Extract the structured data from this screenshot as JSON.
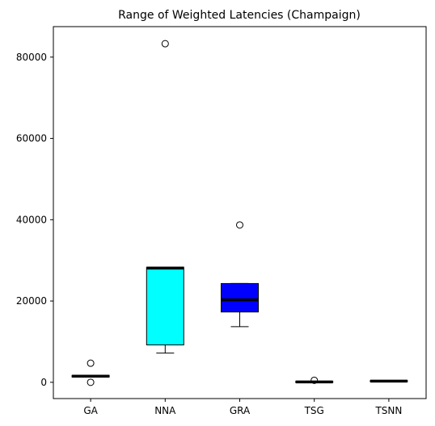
{
  "chart_data": {
    "type": "box",
    "title": "Range of Weighted Latencies (Champaign)",
    "xlabel": "",
    "ylabel": "",
    "ylim": [
      -4000,
      87500
    ],
    "yticks": [
      0,
      20000,
      40000,
      60000,
      80000
    ],
    "ytick_labels": [
      "0",
      "20000",
      "40000",
      "60000",
      "80000"
    ],
    "categories": [
      "GA",
      "NNA",
      "GRA",
      "TSG",
      "TSNN"
    ],
    "boxes": [
      {
        "label": "GA",
        "color": "#ffffff",
        "whisker_low": 1300,
        "q1": 1300,
        "median": 1500,
        "q3": 1700,
        "whisker_high": 1700,
        "outliers": [
          4700,
          0
        ]
      },
      {
        "label": "NNA",
        "color": "#00ffff",
        "whisker_low": 7200,
        "q1": 9200,
        "median": 28100,
        "q3": 28300,
        "whisker_high": 28300,
        "outliers": [
          83300
        ]
      },
      {
        "label": "GRA",
        "color": "#0000ff",
        "whisker_low": 13700,
        "q1": 17300,
        "median": 20300,
        "q3": 24300,
        "whisker_high": 24300,
        "outliers": [
          38700
        ]
      },
      {
        "label": "TSG",
        "color": "#ffffff",
        "whisker_low": 0,
        "q1": 0,
        "median": 100,
        "q3": 200,
        "whisker_high": 200,
        "outliers": [
          500
        ]
      },
      {
        "label": "TSNN",
        "color": "#ffffff",
        "whisker_low": 200,
        "q1": 200,
        "median": 300,
        "q3": 400,
        "whisker_high": 400,
        "outliers": []
      }
    ],
    "grid": false,
    "legend": "none"
  }
}
